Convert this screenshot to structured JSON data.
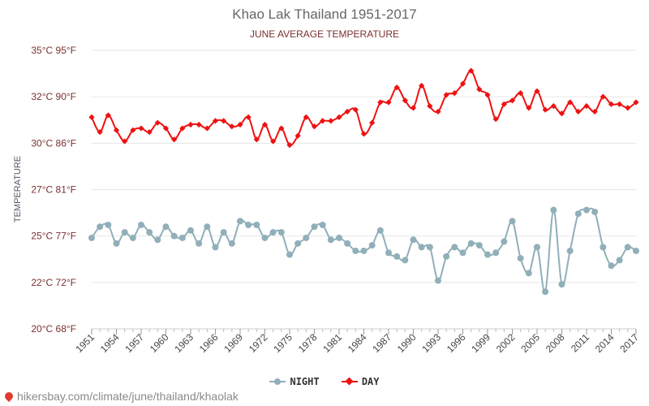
{
  "chart_data": {
    "type": "line",
    "title": "Khao Lak Thailand 1951-2017",
    "subtitle": "JUNE AVERAGE TEMPERATURE",
    "ylabel": "TEMPERATURE",
    "ylim": [
      20,
      35
    ],
    "y_ticks": [
      {
        "value": 20,
        "label": "20°C 68°F"
      },
      {
        "value": 22.5,
        "label": "22°C 72°F"
      },
      {
        "value": 25,
        "label": "25°C 77°F"
      },
      {
        "value": 27.5,
        "label": "27°C 81°F"
      },
      {
        "value": 30,
        "label": "30°C 86°F"
      },
      {
        "value": 32.5,
        "label": "32°C 90°F"
      },
      {
        "value": 35,
        "label": "35°C 95°F"
      }
    ],
    "x_tick_labels": [
      1951,
      1954,
      1957,
      1960,
      1963,
      1966,
      1969,
      1972,
      1975,
      1978,
      1981,
      1984,
      1987,
      1990,
      1993,
      1996,
      1999,
      2002,
      2005,
      2008,
      2011,
      2014,
      2017
    ],
    "grid": true,
    "legend_position": "bottom",
    "x": [
      1951,
      1952,
      1953,
      1954,
      1955,
      1956,
      1957,
      1958,
      1959,
      1960,
      1961,
      1962,
      1963,
      1964,
      1965,
      1966,
      1967,
      1968,
      1969,
      1970,
      1971,
      1972,
      1973,
      1974,
      1975,
      1976,
      1977,
      1978,
      1979,
      1980,
      1981,
      1982,
      1983,
      1984,
      1985,
      1986,
      1987,
      1988,
      1989,
      1990,
      1991,
      1992,
      1993,
      1994,
      1995,
      1996,
      1997,
      1998,
      1999,
      2000,
      2001,
      2002,
      2003,
      2004,
      2005,
      2006,
      2007,
      2008,
      2009,
      2010,
      2011,
      2012,
      2013,
      2014,
      2015,
      2016,
      2017
    ],
    "series": [
      {
        "name": "NIGHT",
        "color": "#90afb9",
        "marker": "circle",
        "values": [
          24.9,
          25.5,
          25.6,
          24.6,
          25.2,
          24.9,
          25.6,
          25.2,
          24.8,
          25.5,
          25.0,
          24.9,
          25.3,
          24.6,
          25.5,
          24.4,
          25.2,
          24.6,
          25.8,
          25.6,
          25.6,
          24.9,
          25.2,
          25.2,
          24.0,
          24.6,
          24.9,
          25.5,
          25.6,
          24.8,
          24.9,
          24.6,
          24.2,
          24.2,
          24.5,
          25.3,
          24.1,
          23.9,
          23.7,
          24.8,
          24.4,
          24.4,
          22.6,
          23.9,
          24.4,
          24.1,
          24.6,
          24.5,
          24.0,
          24.1,
          24.7,
          25.8,
          23.8,
          23.0,
          24.4,
          22.0,
          26.4,
          22.4,
          24.2,
          26.2,
          26.4,
          26.3,
          24.4,
          23.4,
          23.7,
          24.4,
          24.2
        ]
      },
      {
        "name": "DAY",
        "color": "#ee1111",
        "marker": "diamond",
        "values": [
          31.4,
          30.6,
          31.5,
          30.7,
          30.1,
          30.7,
          30.8,
          30.6,
          31.1,
          30.8,
          30.2,
          30.8,
          31.0,
          31.0,
          30.8,
          31.2,
          31.2,
          30.9,
          31.0,
          31.4,
          30.2,
          31.0,
          30.1,
          30.8,
          29.9,
          30.4,
          31.4,
          30.9,
          31.2,
          31.2,
          31.4,
          31.7,
          31.8,
          30.5,
          31.1,
          32.2,
          32.2,
          33.0,
          32.3,
          31.9,
          33.1,
          32.0,
          31.7,
          32.6,
          32.7,
          33.2,
          33.9,
          32.9,
          32.6,
          31.3,
          32.1,
          32.3,
          32.7,
          31.9,
          32.8,
          31.8,
          32.0,
          31.6,
          32.2,
          31.7,
          32.0,
          31.7,
          32.5,
          32.1,
          32.1,
          31.9,
          32.2
        ]
      }
    ]
  },
  "legend": {
    "night_label": "NIGHT",
    "day_label": "DAY"
  },
  "footer": {
    "url": "hikersbay.com/climate/june/thailand/khaolak"
  }
}
